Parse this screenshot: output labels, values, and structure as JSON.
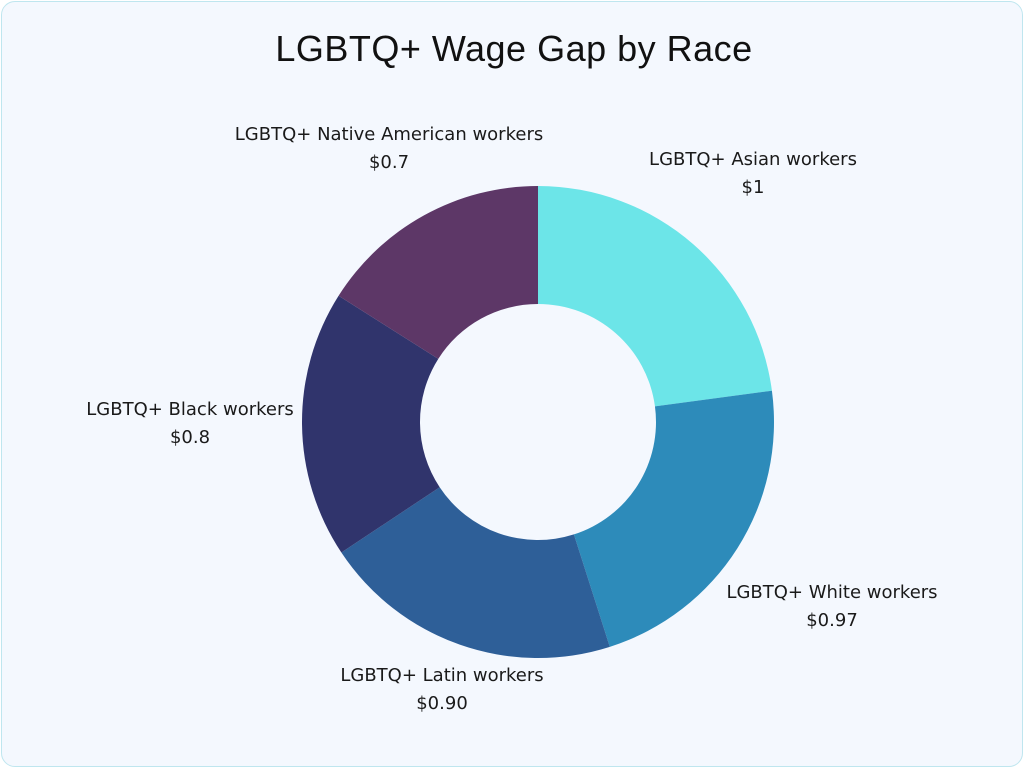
{
  "chart_data": {
    "type": "pie",
    "donut": true,
    "title": "LGBTQ+ Wage Gap by Race",
    "categories": [
      "LGBTQ+ Asian workers",
      "LGBTQ+ White workers",
      "LGBTQ+ Latin workers",
      "LGBTQ+ Black workers",
      "LGBTQ+ Native American workers"
    ],
    "values": [
      1,
      0.97,
      0.9,
      0.8,
      0.7
    ],
    "value_labels": [
      "$1",
      "$0.97",
      "$0.90",
      "$0.8",
      "$0.7"
    ],
    "colors": [
      "#6ce5e8",
      "#2d8bba",
      "#2e5f98",
      "#30346c",
      "#5d3767"
    ],
    "start": "top",
    "direction": "clockwise",
    "legend": "none"
  }
}
